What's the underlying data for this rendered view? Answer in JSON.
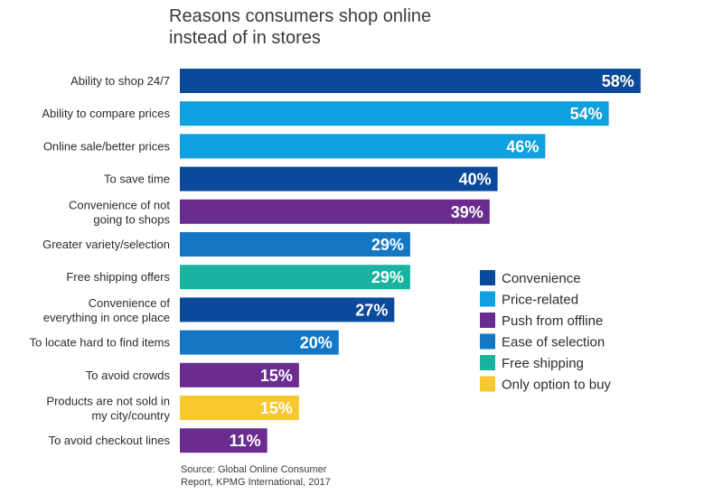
{
  "colors": {
    "convenience": "#0b4a9a",
    "price": "#0ea0df",
    "push": "#6a2c8e",
    "selection": "#1577c4",
    "shipping": "#19b3a0",
    "only": "#f7c92e"
  },
  "chart_data": {
    "type": "bar",
    "orientation": "horizontal",
    "title_lines": [
      "Reasons consumers shop online",
      "instead of in stores"
    ],
    "xlabel": "",
    "ylabel": "",
    "xlim": [
      0,
      60
    ],
    "grid": false,
    "legend_position": "right",
    "categories": [
      {
        "label_lines": [
          "Ability to shop 24/7"
        ],
        "value": 58,
        "value_label": "58%",
        "group": "convenience"
      },
      {
        "label_lines": [
          "Ability to compare prices"
        ],
        "value": 54,
        "value_label": "54%",
        "group": "price"
      },
      {
        "label_lines": [
          "Online sale/better prices"
        ],
        "value": 46,
        "value_label": "46%",
        "group": "price"
      },
      {
        "label_lines": [
          "To save time"
        ],
        "value": 40,
        "value_label": "40%",
        "group": "convenience"
      },
      {
        "label_lines": [
          "Convenience of not",
          "going to shops"
        ],
        "value": 39,
        "value_label": "39%",
        "group": "push"
      },
      {
        "label_lines": [
          "Greater variety/selection"
        ],
        "value": 29,
        "value_label": "29%",
        "group": "selection"
      },
      {
        "label_lines": [
          "Free shipping offers"
        ],
        "value": 29,
        "value_label": "29%",
        "group": "shipping"
      },
      {
        "label_lines": [
          "Convenience of",
          "everything in once place"
        ],
        "value": 27,
        "value_label": "27%",
        "group": "convenience"
      },
      {
        "label_lines": [
          "To locate hard to find items"
        ],
        "value": 20,
        "value_label": "20%",
        "group": "selection"
      },
      {
        "label_lines": [
          "To avoid crowds"
        ],
        "value": 15,
        "value_label": "15%",
        "group": "push"
      },
      {
        "label_lines": [
          "Products are not sold in",
          "my city/country"
        ],
        "value": 15,
        "value_label": "15%",
        "group": "only"
      },
      {
        "label_lines": [
          "To avoid checkout lines"
        ],
        "value": 11,
        "value_label": "11%",
        "group": "push"
      }
    ],
    "legend": [
      {
        "group": "convenience",
        "label": "Convenience"
      },
      {
        "group": "price",
        "label": "Price-related"
      },
      {
        "group": "push",
        "label": "Push from offline"
      },
      {
        "group": "selection",
        "label": "Ease of selection"
      },
      {
        "group": "shipping",
        "label": "Free shipping"
      },
      {
        "group": "only",
        "label": "Only option to buy"
      }
    ],
    "source_lines": [
      "Source: Global Online Consumer",
      "Report, KPMG International, 2017"
    ]
  }
}
